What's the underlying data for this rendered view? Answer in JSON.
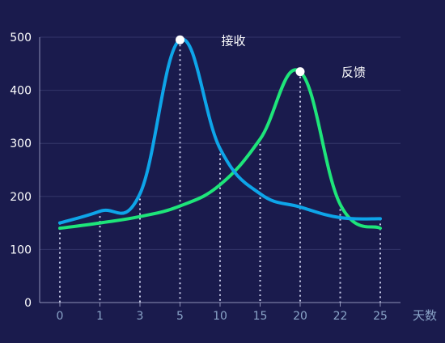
{
  "chart_data": {
    "type": "line",
    "title": "",
    "xlabel": "天数",
    "ylabel": "",
    "x": [
      "0",
      "1",
      "3",
      "5",
      "10",
      "15",
      "20",
      "22",
      "25"
    ],
    "ylim": [
      0,
      500
    ],
    "yticks": [
      0,
      100,
      200,
      300,
      400,
      500
    ],
    "grid": true,
    "series": [
      {
        "name": "接收",
        "color": "#0ea5e9",
        "values": [
          150,
          172,
          205,
          495,
          290,
          205,
          180,
          160,
          158
        ]
      },
      {
        "name": "反馈",
        "color": "#1ee57a",
        "values": [
          140,
          150,
          162,
          182,
          222,
          308,
          435,
          185,
          140
        ]
      }
    ],
    "annotations": [
      {
        "label": "接收",
        "series_index": 0,
        "point_index": 3
      },
      {
        "label": "反馈",
        "series_index": 1,
        "point_index": 6
      }
    ],
    "colors": {
      "background": "#1a1b4d",
      "axis": "#8f92b8",
      "grid": "#34366a",
      "tick_text": "#8aa4c8",
      "ytick_text": "#ffffff",
      "dotted": "#c5c8e6",
      "marker": "#ffffff"
    }
  }
}
